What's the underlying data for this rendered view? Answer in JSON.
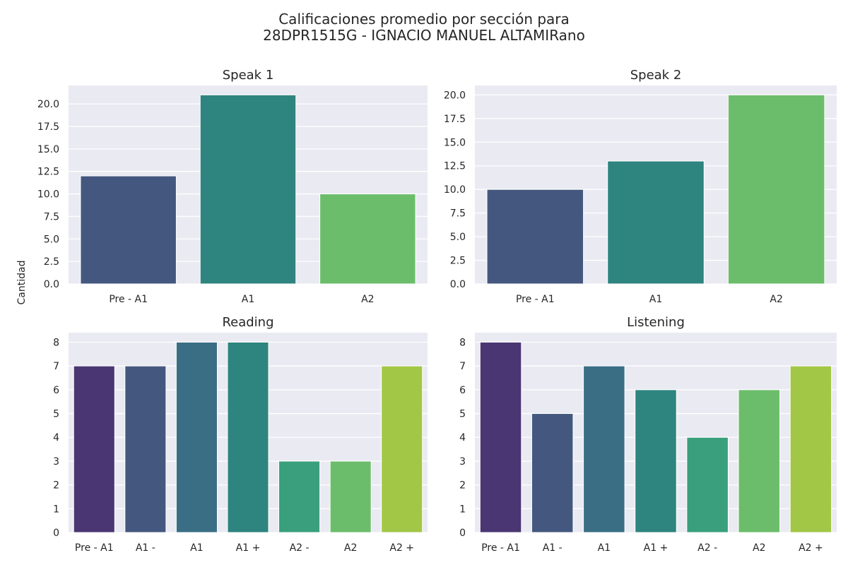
{
  "figure": {
    "title_line1": "Calificaciones promedio por sección para",
    "title_line2": "28DPR1515G - IGNACIO MANUEL ALTAMIRano",
    "shared_ylabel": "Cantidad"
  },
  "colors": {
    "background": "#eaeaf2",
    "grid": "#ffffff",
    "text": "#262626"
  },
  "chart_data": [
    {
      "type": "bar",
      "title": "Speak 1",
      "categories": [
        "Pre - A1",
        "A1",
        "A2"
      ],
      "values": [
        12,
        21,
        10
      ],
      "colors": [
        "#44587f",
        "#2e847e",
        "#6cbd6b"
      ],
      "ylim": [
        0,
        22.05
      ],
      "yticks": [
        0,
        2.5,
        5,
        7.5,
        10,
        12.5,
        15,
        17.5,
        20
      ],
      "ytick_labels": [
        "0.0",
        "2.5",
        "5.0",
        "7.5",
        "10.0",
        "12.5",
        "15.0",
        "17.5",
        "20.0"
      ],
      "grid": true
    },
    {
      "type": "bar",
      "title": "Speak 2",
      "categories": [
        "Pre - A1",
        "A1",
        "A2"
      ],
      "values": [
        10,
        13,
        20
      ],
      "colors": [
        "#44587f",
        "#2e847e",
        "#6cbd6b"
      ],
      "ylim": [
        0,
        21
      ],
      "yticks": [
        0,
        2.5,
        5,
        7.5,
        10,
        12.5,
        15,
        17.5,
        20
      ],
      "ytick_labels": [
        "0.0",
        "2.5",
        "5.0",
        "7.5",
        "10.0",
        "12.5",
        "15.0",
        "17.5",
        "20.0"
      ],
      "grid": true
    },
    {
      "type": "bar",
      "title": "Reading",
      "categories": [
        "Pre - A1",
        "A1 -",
        "A1",
        "A1 +",
        "A2 -",
        "A2",
        "A2 +"
      ],
      "values": [
        7,
        7,
        8,
        8,
        3,
        3,
        7
      ],
      "colors": [
        "#4a3672",
        "#44587f",
        "#3a6e84",
        "#2e847e",
        "#3a9f7c",
        "#6cbd6b",
        "#a2c747"
      ],
      "ylim": [
        0,
        8.4
      ],
      "yticks": [
        0,
        1,
        2,
        3,
        4,
        5,
        6,
        7,
        8
      ],
      "ytick_labels": [
        "0",
        "1",
        "2",
        "3",
        "4",
        "5",
        "6",
        "7",
        "8"
      ],
      "grid": true
    },
    {
      "type": "bar",
      "title": "Listening",
      "categories": [
        "Pre - A1",
        "A1 -",
        "A1",
        "A1 +",
        "A2 -",
        "A2",
        "A2 +"
      ],
      "values": [
        8,
        5,
        7,
        6,
        4,
        6,
        7
      ],
      "colors": [
        "#4a3672",
        "#44587f",
        "#3a6e84",
        "#2e847e",
        "#3a9f7c",
        "#6cbd6b",
        "#a2c747"
      ],
      "ylim": [
        0,
        8.4
      ],
      "yticks": [
        0,
        1,
        2,
        3,
        4,
        5,
        6,
        7,
        8
      ],
      "ytick_labels": [
        "0",
        "1",
        "2",
        "3",
        "4",
        "5",
        "6",
        "7",
        "8"
      ],
      "grid": true
    }
  ]
}
